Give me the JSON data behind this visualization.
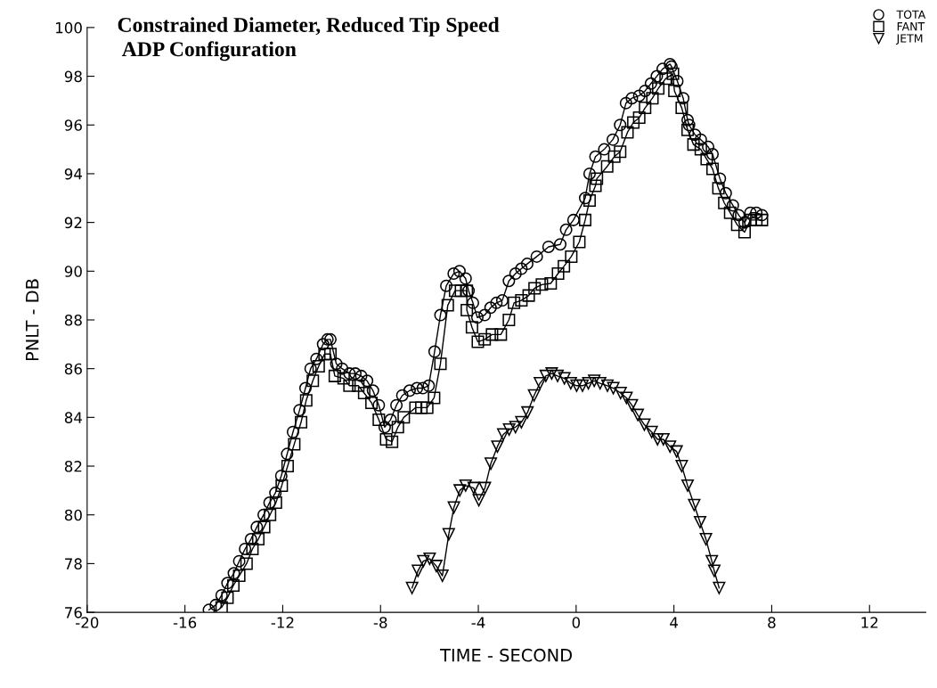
{
  "chart_data": {
    "type": "line",
    "title": "Constrained Diameter, Reduced Tip Speed",
    "subtitle": "ADP Configuration",
    "xlabel": "TIME - SECOND",
    "ylabel": "PNLT - DB",
    "xlim": [
      -20,
      14.3
    ],
    "xticks": [
      -20,
      -16,
      -12,
      -8,
      -4,
      0,
      4,
      8,
      12
    ],
    "ylim": [
      76,
      100
    ],
    "yticks": [
      76,
      78,
      80,
      82,
      84,
      86,
      88,
      90,
      92,
      94,
      96,
      98,
      100
    ],
    "grid": false,
    "legend": "top right",
    "line_style": "solid",
    "series": [
      {
        "name": "TOTA",
        "color": "#000000",
        "marker": "circle",
        "x": [
          -15.02,
          -14.74,
          -14.5,
          -14.26,
          -14.0,
          -13.78,
          -13.54,
          -13.3,
          -13.06,
          -12.78,
          -12.54,
          -12.3,
          -12.06,
          -11.82,
          -11.58,
          -11.31,
          -11.07,
          -10.86,
          -10.62,
          -10.35,
          -10.17,
          -10.05,
          -9.81,
          -9.57,
          -9.27,
          -9.03,
          -8.79,
          -8.55,
          -8.31,
          -8.07,
          -7.83,
          -7.59,
          -7.35,
          -7.11,
          -6.81,
          -6.51,
          -6.27,
          -6.03,
          -5.79,
          -5.55,
          -5.31,
          -5.01,
          -4.77,
          -4.52,
          -4.4,
          -4.22,
          -4.04,
          -3.74,
          -3.5,
          -3.26,
          -3.02,
          -2.75,
          -2.48,
          -2.24,
          -2.0,
          -1.61,
          -1.13,
          -0.65,
          -0.41,
          -0.11,
          0.37,
          0.55,
          0.79,
          1.15,
          1.5,
          1.8,
          2.04,
          2.28,
          2.58,
          2.82,
          3.06,
          3.3,
          3.54,
          3.84,
          3.9,
          4.14,
          4.38,
          4.56,
          4.62,
          4.86,
          5.1,
          5.4,
          5.58,
          5.88,
          6.12,
          6.41,
          6.65,
          6.89,
          7.13,
          7.37,
          7.6
        ],
        "values": [
          76.1,
          76.3,
          76.7,
          77.2,
          77.6,
          78.1,
          78.6,
          79.0,
          79.5,
          80.0,
          80.5,
          80.9,
          81.6,
          82.5,
          83.4,
          84.3,
          85.2,
          86.0,
          86.4,
          87.0,
          87.2,
          87.2,
          86.2,
          86.0,
          85.8,
          85.8,
          85.7,
          85.5,
          85.1,
          84.5,
          83.6,
          83.9,
          84.5,
          84.9,
          85.1,
          85.2,
          85.2,
          85.3,
          86.7,
          88.2,
          89.4,
          89.9,
          90.0,
          89.7,
          89.2,
          88.7,
          88.1,
          88.2,
          88.5,
          88.7,
          88.8,
          89.6,
          89.9,
          90.1,
          90.3,
          90.6,
          91.0,
          91.1,
          91.7,
          92.1,
          93.0,
          94.0,
          94.7,
          95.0,
          95.4,
          96.0,
          96.9,
          97.1,
          97.2,
          97.4,
          97.7,
          98.0,
          98.3,
          98.5,
          98.4,
          97.8,
          97.1,
          96.2,
          96.0,
          95.6,
          95.4,
          95.1,
          94.8,
          93.8,
          93.2,
          92.7,
          92.3,
          92.0,
          92.4,
          92.4,
          92.3
        ]
      },
      {
        "name": "FANT",
        "color": "#000000",
        "marker": "square",
        "x": [
          -14.5,
          -14.26,
          -14.02,
          -13.78,
          -13.48,
          -13.24,
          -13.0,
          -12.76,
          -12.52,
          -12.28,
          -12.04,
          -11.8,
          -11.53,
          -11.25,
          -11.04,
          -10.77,
          -10.53,
          -10.29,
          -10.05,
          -9.87,
          -9.51,
          -9.27,
          -8.91,
          -8.67,
          -8.37,
          -8.07,
          -7.77,
          -7.53,
          -7.29,
          -7.05,
          -6.57,
          -6.33,
          -6.09,
          -5.81,
          -5.55,
          -5.25,
          -4.95,
          -4.71,
          -4.47,
          -4.47,
          -4.26,
          -4.02,
          -3.74,
          -3.44,
          -3.08,
          -2.75,
          -2.54,
          -2.24,
          -1.94,
          -1.7,
          -1.4,
          -1.04,
          -0.74,
          -0.5,
          -0.2,
          0.13,
          0.37,
          0.55,
          0.79,
          0.85,
          1.27,
          1.56,
          1.8,
          2.1,
          2.34,
          2.58,
          2.82,
          3.12,
          3.36,
          3.66,
          3.96,
          4.02,
          4.32,
          4.56,
          4.8,
          5.1,
          5.34,
          5.58,
          5.82,
          6.06,
          6.3,
          6.59,
          6.89,
          7.13,
          7.37,
          7.6
        ],
        "values": [
          76.2,
          76.6,
          77.1,
          77.5,
          78.0,
          78.6,
          79.0,
          79.5,
          80.0,
          80.5,
          81.2,
          82.0,
          82.9,
          83.8,
          84.7,
          85.5,
          86.1,
          86.6,
          86.6,
          85.7,
          85.6,
          85.3,
          85.3,
          85.0,
          84.6,
          83.9,
          83.1,
          83.0,
          83.6,
          84.0,
          84.4,
          84.4,
          84.4,
          84.8,
          86.2,
          88.6,
          89.2,
          89.2,
          89.2,
          88.4,
          87.7,
          87.1,
          87.2,
          87.4,
          87.4,
          88.0,
          88.7,
          88.8,
          89.0,
          89.3,
          89.45,
          89.5,
          89.9,
          90.2,
          90.6,
          91.2,
          92.1,
          92.9,
          93.5,
          93.8,
          94.3,
          94.7,
          94.9,
          95.7,
          96.1,
          96.3,
          96.7,
          97.1,
          97.5,
          97.9,
          98.1,
          97.4,
          96.7,
          95.8,
          95.2,
          95.0,
          94.6,
          94.2,
          93.4,
          92.8,
          92.4,
          91.9,
          91.6,
          92.1,
          92.1,
          92.1
        ]
      },
      {
        "name": "JETM",
        "color": "#000000",
        "marker": "triangle",
        "x": [
          -6.71,
          -6.47,
          -6.25,
          -5.99,
          -5.72,
          -5.47,
          -5.21,
          -5.0,
          -4.76,
          -4.52,
          -4.19,
          -3.98,
          -3.73,
          -3.49,
          -3.22,
          -2.98,
          -2.74,
          -2.48,
          -2.24,
          -1.99,
          -1.72,
          -1.48,
          -1.24,
          -1.0,
          -0.76,
          -0.48,
          -0.22,
          0.02,
          0.26,
          0.5,
          0.74,
          0.98,
          1.28,
          1.52,
          1.82,
          2.06,
          2.28,
          2.52,
          2.79,
          3.09,
          3.33,
          3.57,
          3.84,
          4.11,
          4.32,
          4.56,
          4.83,
          5.07,
          5.31,
          5.55,
          5.65,
          5.85
        ],
        "values": [
          77.0,
          77.7,
          78.1,
          78.2,
          77.9,
          77.5,
          79.2,
          80.3,
          81.0,
          81.2,
          81.1,
          80.6,
          81.1,
          82.1,
          82.8,
          83.3,
          83.5,
          83.6,
          83.8,
          84.2,
          84.9,
          85.4,
          85.7,
          85.8,
          85.7,
          85.6,
          85.4,
          85.3,
          85.3,
          85.4,
          85.5,
          85.4,
          85.3,
          85.2,
          85.0,
          84.8,
          84.5,
          84.1,
          83.7,
          83.4,
          83.1,
          83.1,
          82.8,
          82.6,
          82.0,
          81.2,
          80.4,
          79.7,
          79.0,
          78.1,
          77.7,
          77.0
        ]
      }
    ]
  }
}
